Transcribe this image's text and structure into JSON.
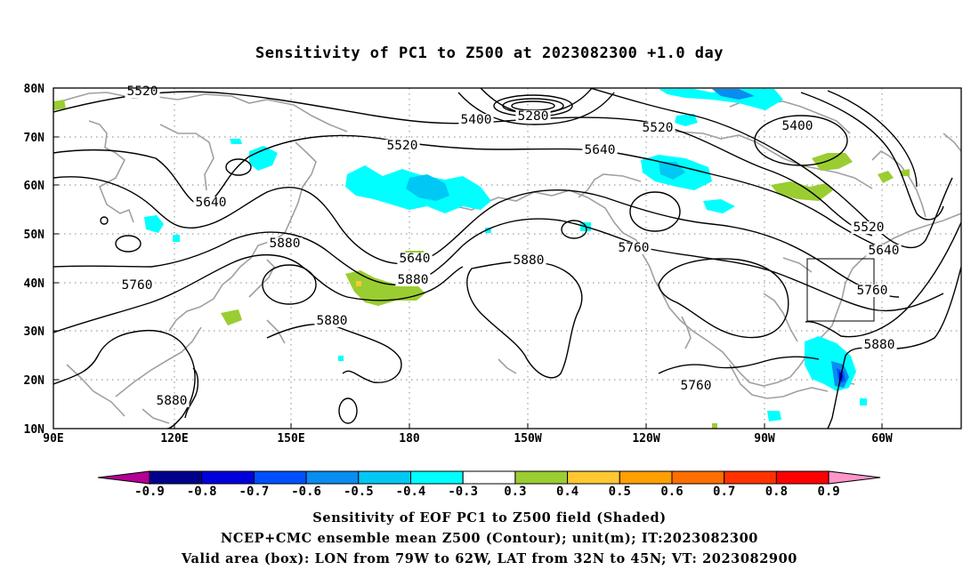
{
  "title": "Sensitivity of PC1 to Z500 at 2023082300 +1.0 day",
  "y_axis_labels": [
    "80N",
    "70N",
    "60N",
    "50N",
    "40N",
    "30N",
    "20N",
    "10N"
  ],
  "x_axis_labels": [
    "90E",
    "120E",
    "150E",
    "180",
    "150W",
    "120W",
    "90W",
    "60W"
  ],
  "colorbar": {
    "labels": [
      "-0.9",
      "-0.8",
      "-0.7",
      "-0.6",
      "-0.5",
      "-0.4",
      "-0.3",
      "0.3",
      "0.4",
      "0.5",
      "0.6",
      "0.7",
      "0.8",
      "0.9"
    ],
    "colors": [
      "#b40096",
      "#00008b",
      "#0000dc",
      "#0050ff",
      "#0a8cf0",
      "#00c8f5",
      "#00ffff",
      "#ffffff",
      "#9acd32",
      "#ffc832",
      "#ffa000",
      "#ff6e00",
      "#ff3200",
      "#ff0000",
      "#ff96c8"
    ]
  },
  "contour_labels": [
    {
      "text": "5520"
    },
    {
      "text": "5400"
    },
    {
      "text": "5280"
    },
    {
      "text": "5520"
    },
    {
      "text": "5400"
    },
    {
      "text": "5520"
    },
    {
      "text": "5640"
    },
    {
      "text": "5640"
    },
    {
      "text": "5880"
    },
    {
      "text": "5640"
    },
    {
      "text": "5760"
    },
    {
      "text": "5880"
    },
    {
      "text": "5760"
    },
    {
      "text": "5760"
    },
    {
      "text": "5880"
    },
    {
      "text": "5880"
    },
    {
      "text": "5520"
    },
    {
      "text": "5640"
    },
    {
      "text": "5760"
    },
    {
      "text": "5880"
    },
    {
      "text": "5880"
    }
  ],
  "captions": [
    "Sensitivity of EOF PC1 to Z500 field (Shaded)",
    "NCEP+CMC ensemble mean Z500 (Contour); unit(m); IT:2023082300",
    "Valid area (box): LON from 79W to 62W, LAT from 32N to 45N; VT: 2023082900"
  ],
  "valid_box": {
    "lon_from": "79W",
    "lon_to": "62W",
    "lat_from": "32N",
    "lat_to": "45N"
  },
  "style": {
    "contour_color": "#000000",
    "coast_color": "#a0a0a0",
    "grid_color": "#a0a0a0"
  }
}
